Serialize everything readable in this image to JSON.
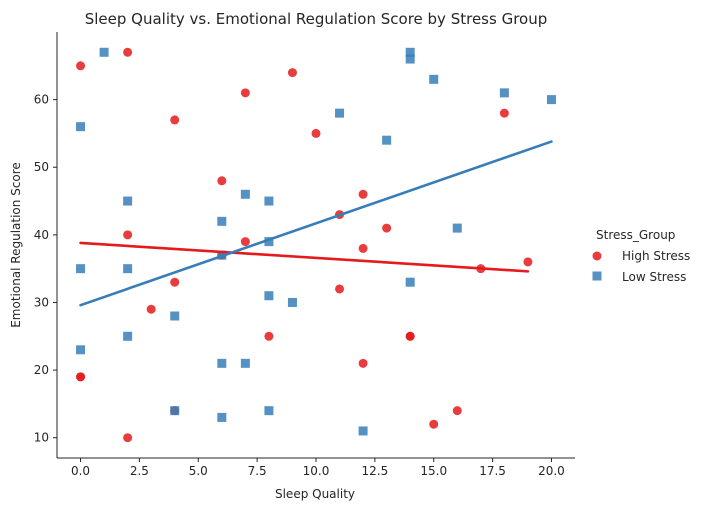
{
  "chart_data": {
    "type": "scatter",
    "title": "Sleep Quality vs. Emotional Regulation Score by Stress Group",
    "xlabel": "Sleep Quality",
    "ylabel": "Emotional Regulation Score",
    "xlim": [
      -1,
      21
    ],
    "ylim": [
      7,
      70
    ],
    "x_ticks": [
      0,
      2.5,
      5,
      7.5,
      10,
      12.5,
      15,
      17.5,
      20
    ],
    "x_tick_labels": [
      "0.0",
      "2.5",
      "5.0",
      "7.5",
      "10.0",
      "12.5",
      "15.0",
      "17.5",
      "20.0"
    ],
    "y_ticks": [
      10,
      20,
      30,
      40,
      50,
      60
    ],
    "y_tick_labels": [
      "10",
      "20",
      "30",
      "40",
      "50",
      "60"
    ],
    "grid": false,
    "legend": {
      "title": "Stress_Group",
      "placement": "right"
    },
    "series": [
      {
        "name": "High Stress",
        "color": "#e41a1c",
        "marker": "circle",
        "points": [
          [
            0,
            65
          ],
          [
            2,
            67
          ],
          [
            9,
            64
          ],
          [
            7,
            61
          ],
          [
            4,
            57
          ],
          [
            10,
            55
          ],
          [
            18,
            58
          ],
          [
            6,
            48
          ],
          [
            12,
            46
          ],
          [
            11,
            43
          ],
          [
            2,
            40
          ],
          [
            7,
            39
          ],
          [
            13,
            41
          ],
          [
            12,
            38
          ],
          [
            6,
            37
          ],
          [
            17,
            35
          ],
          [
            19,
            36
          ],
          [
            4,
            33
          ],
          [
            11,
            32
          ],
          [
            3,
            29
          ],
          [
            8,
            25
          ],
          [
            14,
            25
          ],
          [
            14,
            25
          ],
          [
            12,
            21
          ],
          [
            0,
            19
          ],
          [
            0,
            19
          ],
          [
            4,
            14
          ],
          [
            16,
            14
          ],
          [
            15,
            12
          ],
          [
            2,
            10
          ]
        ],
        "regression": {
          "x": [
            0,
            19
          ],
          "y": [
            38.8,
            34.6
          ]
        }
      },
      {
        "name": "Low Stress",
        "color": "#377eb8",
        "marker": "square",
        "points": [
          [
            1,
            67
          ],
          [
            14,
            67
          ],
          [
            14,
            66
          ],
          [
            15,
            63
          ],
          [
            18,
            61
          ],
          [
            20,
            60
          ],
          [
            0,
            56
          ],
          [
            11,
            58
          ],
          [
            13,
            54
          ],
          [
            2,
            45
          ],
          [
            7,
            46
          ],
          [
            8,
            45
          ],
          [
            6,
            42
          ],
          [
            16,
            41
          ],
          [
            8,
            39
          ],
          [
            6,
            37
          ],
          [
            0,
            35
          ],
          [
            2,
            35
          ],
          [
            14,
            33
          ],
          [
            8,
            31
          ],
          [
            9,
            30
          ],
          [
            4,
            28
          ],
          [
            2,
            25
          ],
          [
            0,
            23
          ],
          [
            6,
            21
          ],
          [
            7,
            21
          ],
          [
            4,
            14
          ],
          [
            6,
            13
          ],
          [
            8,
            14
          ],
          [
            12,
            11
          ]
        ],
        "regression": {
          "x": [
            0,
            20
          ],
          "y": [
            29.6,
            53.8
          ]
        }
      }
    ]
  }
}
